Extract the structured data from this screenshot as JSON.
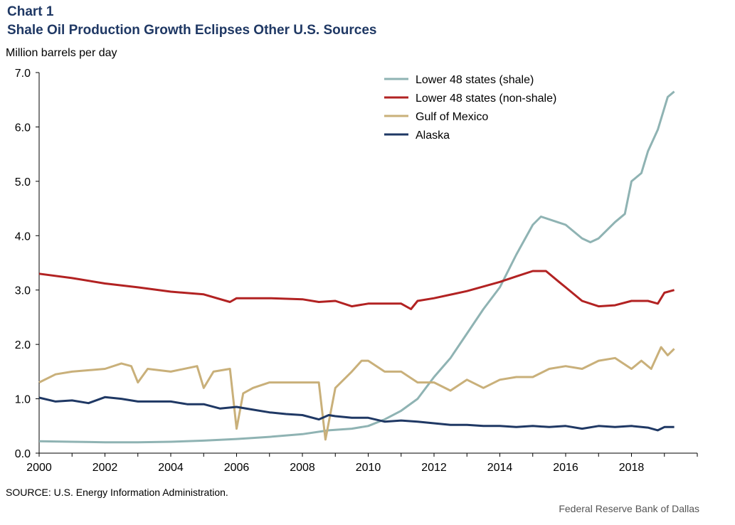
{
  "header": {
    "chart_label": "Chart 1",
    "title": "Shale Oil Production Growth Eclipses Other U.S. Sources",
    "unit_label": "Million barrels per day"
  },
  "footer": {
    "source": "SOURCE: U.S. Energy Information Administration.",
    "credit": "Federal Reserve Bank of Dallas"
  },
  "chart_data": {
    "type": "line",
    "title": "Shale Oil Production Growth Eclipses Other U.S. Sources",
    "ylabel": "Million barrels per day",
    "xlabel": "",
    "xlim": [
      2000,
      2020
    ],
    "ylim": [
      0,
      7
    ],
    "x_ticks": [
      "2000",
      "2002",
      "2004",
      "2006",
      "2008",
      "2010",
      "2012",
      "2014",
      "2016",
      "2018"
    ],
    "y_ticks": [
      "0.0",
      "1.0",
      "2.0",
      "3.0",
      "4.0",
      "5.0",
      "6.0",
      "7.0"
    ],
    "grid": false,
    "legend_position": "top-right",
    "series": [
      {
        "name": "Lower 48  states (shale)",
        "color": "#8fb3b3",
        "points": [
          [
            2000,
            0.22
          ],
          [
            2001,
            0.21
          ],
          [
            2002,
            0.2
          ],
          [
            2003,
            0.2
          ],
          [
            2004,
            0.21
          ],
          [
            2005,
            0.23
          ],
          [
            2006,
            0.26
          ],
          [
            2007,
            0.3
          ],
          [
            2008,
            0.35
          ],
          [
            2008.8,
            0.42
          ],
          [
            2009.5,
            0.45
          ],
          [
            2010,
            0.5
          ],
          [
            2010.5,
            0.62
          ],
          [
            2011,
            0.78
          ],
          [
            2011.5,
            1.0
          ],
          [
            2012,
            1.4
          ],
          [
            2012.5,
            1.75
          ],
          [
            2013,
            2.2
          ],
          [
            2013.5,
            2.65
          ],
          [
            2014,
            3.05
          ],
          [
            2014.5,
            3.65
          ],
          [
            2015,
            4.2
          ],
          [
            2015.25,
            4.35
          ],
          [
            2015.75,
            4.25
          ],
          [
            2016,
            4.2
          ],
          [
            2016.5,
            3.95
          ],
          [
            2016.75,
            3.88
          ],
          [
            2017,
            3.95
          ],
          [
            2017.5,
            4.25
          ],
          [
            2017.8,
            4.4
          ],
          [
            2018,
            5.0
          ],
          [
            2018.3,
            5.15
          ],
          [
            2018.5,
            5.55
          ],
          [
            2018.8,
            5.95
          ],
          [
            2019.1,
            6.55
          ],
          [
            2019.3,
            6.65
          ]
        ]
      },
      {
        "name": "Lower 48 states (non-shale)",
        "color": "#b22222",
        "points": [
          [
            2000,
            3.3
          ],
          [
            2001,
            3.22
          ],
          [
            2002,
            3.12
          ],
          [
            2003,
            3.05
          ],
          [
            2004,
            2.97
          ],
          [
            2005,
            2.92
          ],
          [
            2005.8,
            2.78
          ],
          [
            2006,
            2.85
          ],
          [
            2007,
            2.85
          ],
          [
            2008,
            2.83
          ],
          [
            2008.5,
            2.78
          ],
          [
            2009,
            2.8
          ],
          [
            2009.5,
            2.7
          ],
          [
            2010,
            2.75
          ],
          [
            2011,
            2.75
          ],
          [
            2011.3,
            2.65
          ],
          [
            2011.5,
            2.8
          ],
          [
            2012,
            2.85
          ],
          [
            2013,
            2.98
          ],
          [
            2014,
            3.15
          ],
          [
            2014.5,
            3.25
          ],
          [
            2015,
            3.35
          ],
          [
            2015.4,
            3.35
          ],
          [
            2015.8,
            3.15
          ],
          [
            2016,
            3.05
          ],
          [
            2016.5,
            2.8
          ],
          [
            2017,
            2.7
          ],
          [
            2017.5,
            2.72
          ],
          [
            2018,
            2.8
          ],
          [
            2018.5,
            2.8
          ],
          [
            2018.8,
            2.75
          ],
          [
            2019,
            2.95
          ],
          [
            2019.3,
            3.0
          ]
        ]
      },
      {
        "name": "Gulf of Mexico",
        "color": "#c9b07a",
        "points": [
          [
            2000,
            1.3
          ],
          [
            2000.5,
            1.45
          ],
          [
            2001,
            1.5
          ],
          [
            2002,
            1.55
          ],
          [
            2002.5,
            1.65
          ],
          [
            2002.8,
            1.6
          ],
          [
            2003,
            1.3
          ],
          [
            2003.3,
            1.55
          ],
          [
            2004,
            1.5
          ],
          [
            2004.8,
            1.6
          ],
          [
            2005,
            1.2
          ],
          [
            2005.3,
            1.5
          ],
          [
            2005.8,
            1.55
          ],
          [
            2006,
            0.45
          ],
          [
            2006.2,
            1.1
          ],
          [
            2006.5,
            1.2
          ],
          [
            2007,
            1.3
          ],
          [
            2008,
            1.3
          ],
          [
            2008.5,
            1.3
          ],
          [
            2008.7,
            0.25
          ],
          [
            2009,
            1.2
          ],
          [
            2009.5,
            1.5
          ],
          [
            2009.8,
            1.7
          ],
          [
            2010,
            1.7
          ],
          [
            2010.5,
            1.5
          ],
          [
            2011,
            1.5
          ],
          [
            2011.5,
            1.3
          ],
          [
            2012,
            1.3
          ],
          [
            2012.5,
            1.15
          ],
          [
            2013,
            1.35
          ],
          [
            2013.5,
            1.2
          ],
          [
            2014,
            1.35
          ],
          [
            2014.5,
            1.4
          ],
          [
            2015,
            1.4
          ],
          [
            2015.5,
            1.55
          ],
          [
            2016,
            1.6
          ],
          [
            2016.5,
            1.55
          ],
          [
            2017,
            1.7
          ],
          [
            2017.5,
            1.75
          ],
          [
            2018,
            1.55
          ],
          [
            2018.3,
            1.7
          ],
          [
            2018.6,
            1.55
          ],
          [
            2018.9,
            1.95
          ],
          [
            2019.1,
            1.8
          ],
          [
            2019.3,
            1.92
          ]
        ]
      },
      {
        "name": "Alaska",
        "color": "#1f3864",
        "points": [
          [
            2000,
            1.02
          ],
          [
            2000.5,
            0.95
          ],
          [
            2001,
            0.97
          ],
          [
            2001.5,
            0.92
          ],
          [
            2002,
            1.03
          ],
          [
            2002.5,
            1.0
          ],
          [
            2003,
            0.95
          ],
          [
            2004,
            0.95
          ],
          [
            2004.5,
            0.9
          ],
          [
            2005,
            0.9
          ],
          [
            2005.5,
            0.82
          ],
          [
            2006,
            0.85
          ],
          [
            2006.5,
            0.8
          ],
          [
            2007,
            0.75
          ],
          [
            2007.5,
            0.72
          ],
          [
            2008,
            0.7
          ],
          [
            2008.5,
            0.62
          ],
          [
            2008.8,
            0.7
          ],
          [
            2009,
            0.68
          ],
          [
            2009.5,
            0.65
          ],
          [
            2010,
            0.65
          ],
          [
            2010.5,
            0.58
          ],
          [
            2011,
            0.6
          ],
          [
            2011.5,
            0.58
          ],
          [
            2012,
            0.55
          ],
          [
            2012.5,
            0.52
          ],
          [
            2013,
            0.52
          ],
          [
            2013.5,
            0.5
          ],
          [
            2014,
            0.5
          ],
          [
            2014.5,
            0.48
          ],
          [
            2015,
            0.5
          ],
          [
            2015.5,
            0.48
          ],
          [
            2016,
            0.5
          ],
          [
            2016.5,
            0.45
          ],
          [
            2017,
            0.5
          ],
          [
            2017.5,
            0.48
          ],
          [
            2018,
            0.5
          ],
          [
            2018.5,
            0.47
          ],
          [
            2018.8,
            0.42
          ],
          [
            2019,
            0.48
          ],
          [
            2019.3,
            0.48
          ]
        ]
      }
    ]
  }
}
